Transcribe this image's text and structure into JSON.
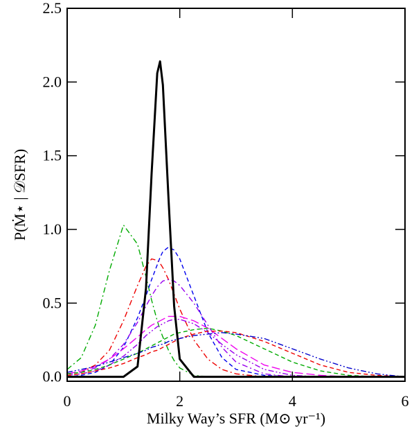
{
  "chart_data": {
    "type": "line",
    "xlabel": "Milky Way’s SFR (M⊙ yr⁻¹)",
    "ylabel": "P(Ṁ⋆ | 𝒟SFR)",
    "x": [
      0,
      0.25,
      0.5,
      0.75,
      1.0,
      1.25,
      1.4,
      1.5,
      1.6,
      1.65,
      1.7,
      1.8,
      1.9,
      2.0,
      2.25,
      2.5,
      2.75,
      3,
      3.5,
      4,
      4.5,
      5,
      5.5,
      6
    ],
    "xlim": [
      0,
      6
    ],
    "xticks": [
      0,
      2,
      4,
      6
    ],
    "ylim": [
      -0.03,
      2.5
    ],
    "yticks": [
      {
        "value": 0,
        "label": "0.0"
      },
      0.5,
      {
        "value": 1,
        "label": "1.0"
      },
      1.5,
      {
        "value": 2,
        "label": "2.0"
      },
      2.5
    ],
    "series": [
      {
        "color": "#00aa00",
        "dash": "8 4 2 4",
        "width": 1.4,
        "values": [
          0.05,
          0.13,
          0.35,
          0.72,
          1.03,
          0.9,
          0.68,
          0.52,
          0.38,
          0.32,
          0.27,
          0.18,
          0.11,
          0.06,
          0.01,
          0,
          0,
          0,
          0,
          0,
          0,
          0,
          0,
          0
        ]
      },
      {
        "color": "#ee0000",
        "dash": "8 4 2 4",
        "width": 1.4,
        "values": [
          0.02,
          0.03,
          0.08,
          0.18,
          0.38,
          0.62,
          0.75,
          0.8,
          0.79,
          0.77,
          0.74,
          0.66,
          0.56,
          0.46,
          0.25,
          0.12,
          0.05,
          0.02,
          0,
          0,
          0,
          0,
          0,
          0
        ]
      },
      {
        "color": "#0000ee",
        "dash": "6 4",
        "width": 1.4,
        "values": [
          0,
          0.01,
          0.03,
          0.08,
          0.2,
          0.4,
          0.55,
          0.66,
          0.76,
          0.81,
          0.85,
          0.88,
          0.86,
          0.8,
          0.55,
          0.3,
          0.13,
          0.05,
          0.01,
          0,
          0,
          0,
          0,
          0
        ]
      },
      {
        "color": "#9900ee",
        "dash": "8 4 2 4",
        "width": 1.4,
        "values": [
          0.02,
          0.03,
          0.06,
          0.12,
          0.22,
          0.37,
          0.48,
          0.55,
          0.61,
          0.63,
          0.65,
          0.66,
          0.65,
          0.62,
          0.5,
          0.35,
          0.2,
          0.1,
          0.02,
          0,
          0,
          0,
          0,
          0
        ]
      },
      {
        "color": "#ee00ee",
        "dash": "12 5",
        "width": 1.4,
        "values": [
          0.02,
          0.04,
          0.07,
          0.12,
          0.19,
          0.27,
          0.32,
          0.35,
          0.37,
          0.38,
          0.39,
          0.41,
          0.41,
          0.41,
          0.38,
          0.33,
          0.26,
          0.19,
          0.08,
          0.03,
          0.01,
          0,
          0,
          0
        ]
      },
      {
        "color": "#9900ee",
        "dash": "8 3 2 3 2 3",
        "width": 1.4,
        "values": [
          0.01,
          0.02,
          0.04,
          0.08,
          0.14,
          0.22,
          0.28,
          0.31,
          0.34,
          0.35,
          0.36,
          0.38,
          0.39,
          0.39,
          0.36,
          0.3,
          0.22,
          0.15,
          0.05,
          0.01,
          0,
          0,
          0,
          0
        ]
      },
      {
        "color": "#00aa00",
        "dash": "6 4",
        "width": 1.4,
        "values": [
          0.02,
          0.03,
          0.05,
          0.08,
          0.12,
          0.16,
          0.19,
          0.21,
          0.23,
          0.24,
          0.25,
          0.27,
          0.29,
          0.3,
          0.32,
          0.33,
          0.31,
          0.28,
          0.19,
          0.1,
          0.04,
          0.01,
          0,
          0
        ]
      },
      {
        "color": "#ee0000",
        "dash": "6 4",
        "width": 1.4,
        "values": [
          0.01,
          0.02,
          0.04,
          0.06,
          0.09,
          0.13,
          0.15,
          0.17,
          0.18,
          0.19,
          0.2,
          0.22,
          0.24,
          0.26,
          0.29,
          0.31,
          0.31,
          0.3,
          0.24,
          0.16,
          0.08,
          0.03,
          0.01,
          0
        ]
      },
      {
        "color": "#0000cc",
        "dash": "8 3 2 3 2 3",
        "width": 1.4,
        "values": [
          0.03,
          0.05,
          0.07,
          0.1,
          0.13,
          0.16,
          0.18,
          0.2,
          0.21,
          0.22,
          0.22,
          0.24,
          0.25,
          0.26,
          0.28,
          0.29,
          0.3,
          0.29,
          0.26,
          0.19,
          0.12,
          0.06,
          0.02,
          0
        ]
      },
      {
        "color": "#000000",
        "dash": "none",
        "width": 3,
        "values": [
          0,
          0,
          0,
          0,
          0,
          0.07,
          0.6,
          1.38,
          2.06,
          2.14,
          1.98,
          1.21,
          0.48,
          0.12,
          0,
          0,
          0,
          0,
          0,
          0,
          0,
          0,
          0,
          0
        ]
      }
    ]
  }
}
